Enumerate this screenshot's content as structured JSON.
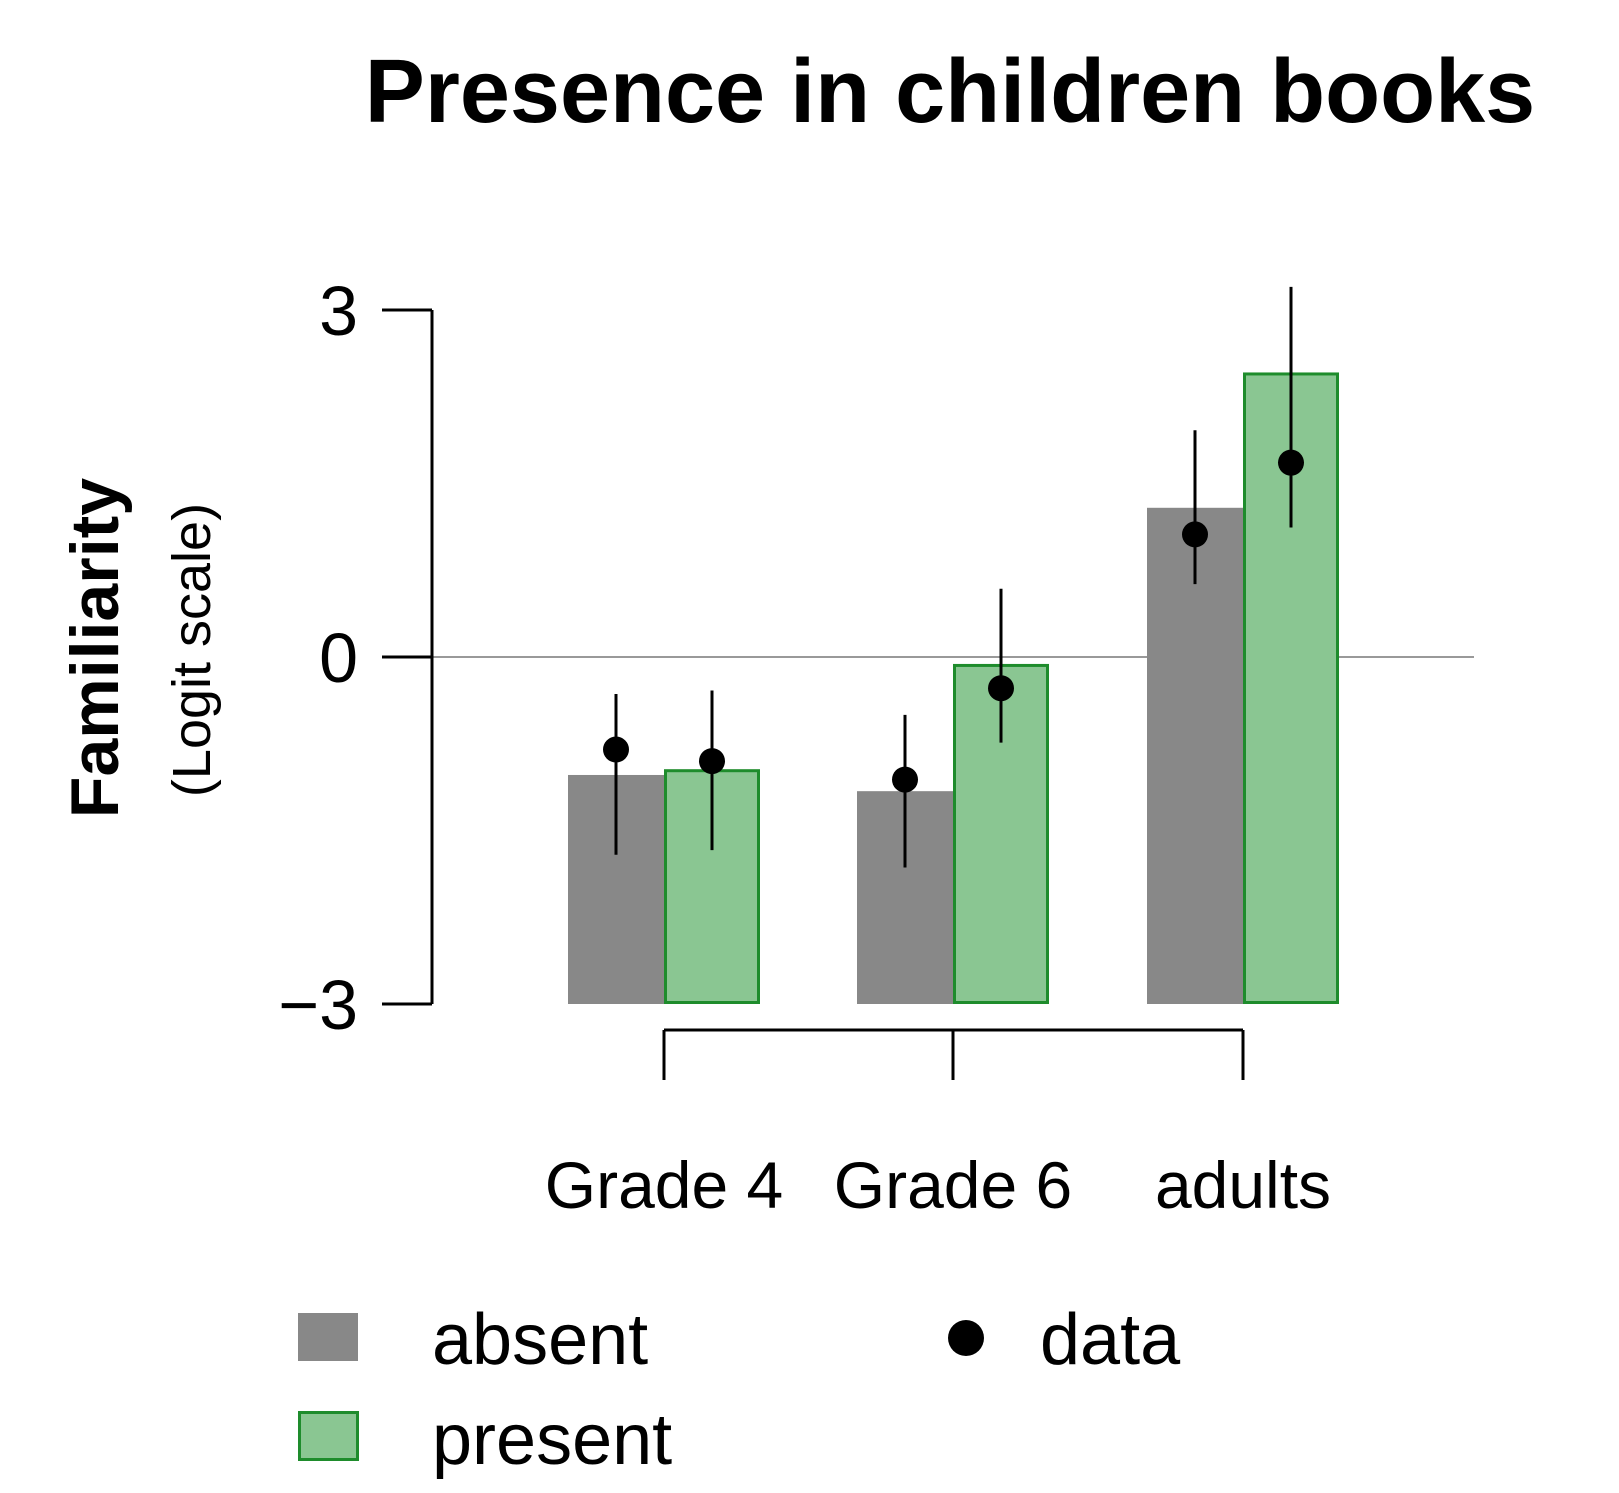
{
  "chart_data": {
    "type": "bar",
    "title": "Presence in children books",
    "ylabel": "Familiarity",
    "ylabel_sub": "(Logit scale)",
    "xlabel": "",
    "ylim": [
      -3,
      3
    ],
    "yticks": [
      {
        "value": 3,
        "label": "3"
      },
      {
        "value": 0,
        "label": "0"
      },
      {
        "value": -3,
        "label": "−3"
      }
    ],
    "categories": [
      "Grade 4",
      "Grade 6",
      "adults"
    ],
    "series": [
      {
        "name": "absent",
        "color": "#888888",
        "border": "#888888",
        "values": [
          -1.02,
          -1.16,
          1.29
        ],
        "data_points": [
          -0.8,
          -1.06,
          1.06
        ],
        "ci_low": [
          -1.71,
          -1.82,
          0.63
        ],
        "ci_high": [
          -0.32,
          -0.5,
          1.96
        ]
      },
      {
        "name": "present",
        "color": "#8ac692",
        "border": "#1e8c2c",
        "values": [
          -0.97,
          -0.06,
          2.46
        ],
        "data_points": [
          -0.9,
          -0.27,
          1.68
        ],
        "ci_low": [
          -1.67,
          -0.74,
          1.12
        ],
        "ci_high": [
          -0.29,
          0.59,
          3.2
        ]
      }
    ],
    "zero_line": true,
    "legend": {
      "placement": "bottom",
      "items": [
        {
          "label": "absent",
          "kind": "box",
          "color": "#888888",
          "border": "#888888"
        },
        {
          "label": "present",
          "kind": "box",
          "color": "#8ac692",
          "border": "#1e8c2c"
        },
        {
          "label": "data",
          "kind": "dot",
          "color": "#000000"
        }
      ]
    }
  }
}
